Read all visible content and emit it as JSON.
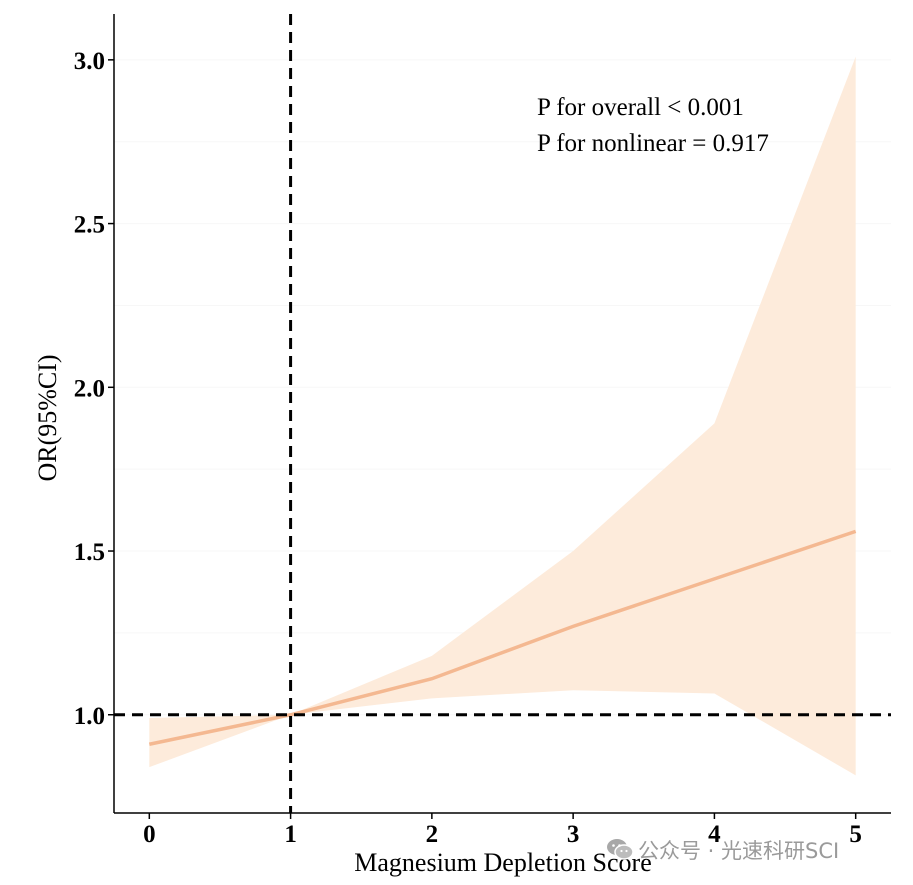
{
  "chart_data": {
    "type": "line",
    "title": "",
    "xlabel": "Magnesium Depletion Score",
    "ylabel": "OR(95%CI)",
    "xlim": [
      -0.25,
      5.25
    ],
    "ylim": [
      0.7,
      3.14
    ],
    "x_ticks": [
      "0",
      "1",
      "2",
      "3",
      "4",
      "5"
    ],
    "y_ticks": [
      "1.0",
      "1.5",
      "2.0",
      "2.5",
      "3.0"
    ],
    "grid": true,
    "series": [
      {
        "x": [
          0,
          1,
          2,
          3,
          4,
          5
        ],
        "values": [
          0.91,
          1.0,
          1.11,
          1.27,
          1.415,
          1.56
        ],
        "lower": [
          0.84,
          1.0,
          1.05,
          1.075,
          1.065,
          0.815
        ],
        "upper": [
          0.99,
          1.0,
          1.18,
          1.5,
          1.89,
          3.01
        ]
      }
    ],
    "reference_lines": {
      "x": 1,
      "y": 1.0
    },
    "annotations": [
      "P for overall < 0.001",
      "P for nonlinear = 0.917"
    ],
    "colors": {
      "line": "#f4b891",
      "ribbon": "#fdebdb",
      "reference": "#000000"
    }
  },
  "watermark": {
    "text": "公众号 · 光速科研SCI",
    "icon": "wechat-icon"
  }
}
